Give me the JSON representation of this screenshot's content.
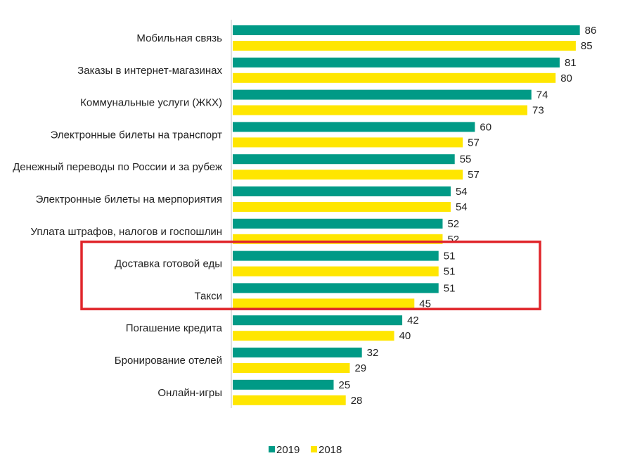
{
  "chart_data": {
    "type": "bar",
    "orientation": "horizontal",
    "categories": [
      "Мобильная связь",
      "Заказы в интернет-магазинах",
      "Коммунальные услуги (ЖКХ)",
      "Электронные билеты на транспорт",
      "Денежный переводы по России и за рубеж",
      "Электронные билеты на мерпориятия",
      "Уплата штрафов, налогов и госпошлин",
      "Доставка готовой еды",
      "Такси",
      "Погашение кредита",
      "Бронирование отелей",
      "Онлайн-игры"
    ],
    "series": [
      {
        "name": "2019",
        "color": "#009a86",
        "values": [
          86,
          81,
          74,
          60,
          55,
          54,
          52,
          51,
          51,
          42,
          32,
          25
        ]
      },
      {
        "name": "2018",
        "color": "#ffe600",
        "values": [
          85,
          80,
          73,
          57,
          57,
          54,
          52,
          51,
          45,
          40,
          29,
          28
        ]
      }
    ],
    "xlim": [
      0,
      100
    ],
    "grid": false,
    "legend": "bottom",
    "highlight": {
      "categories": [
        "Доставка готовой еды",
        "Такси"
      ],
      "color": "#e0262b"
    }
  }
}
